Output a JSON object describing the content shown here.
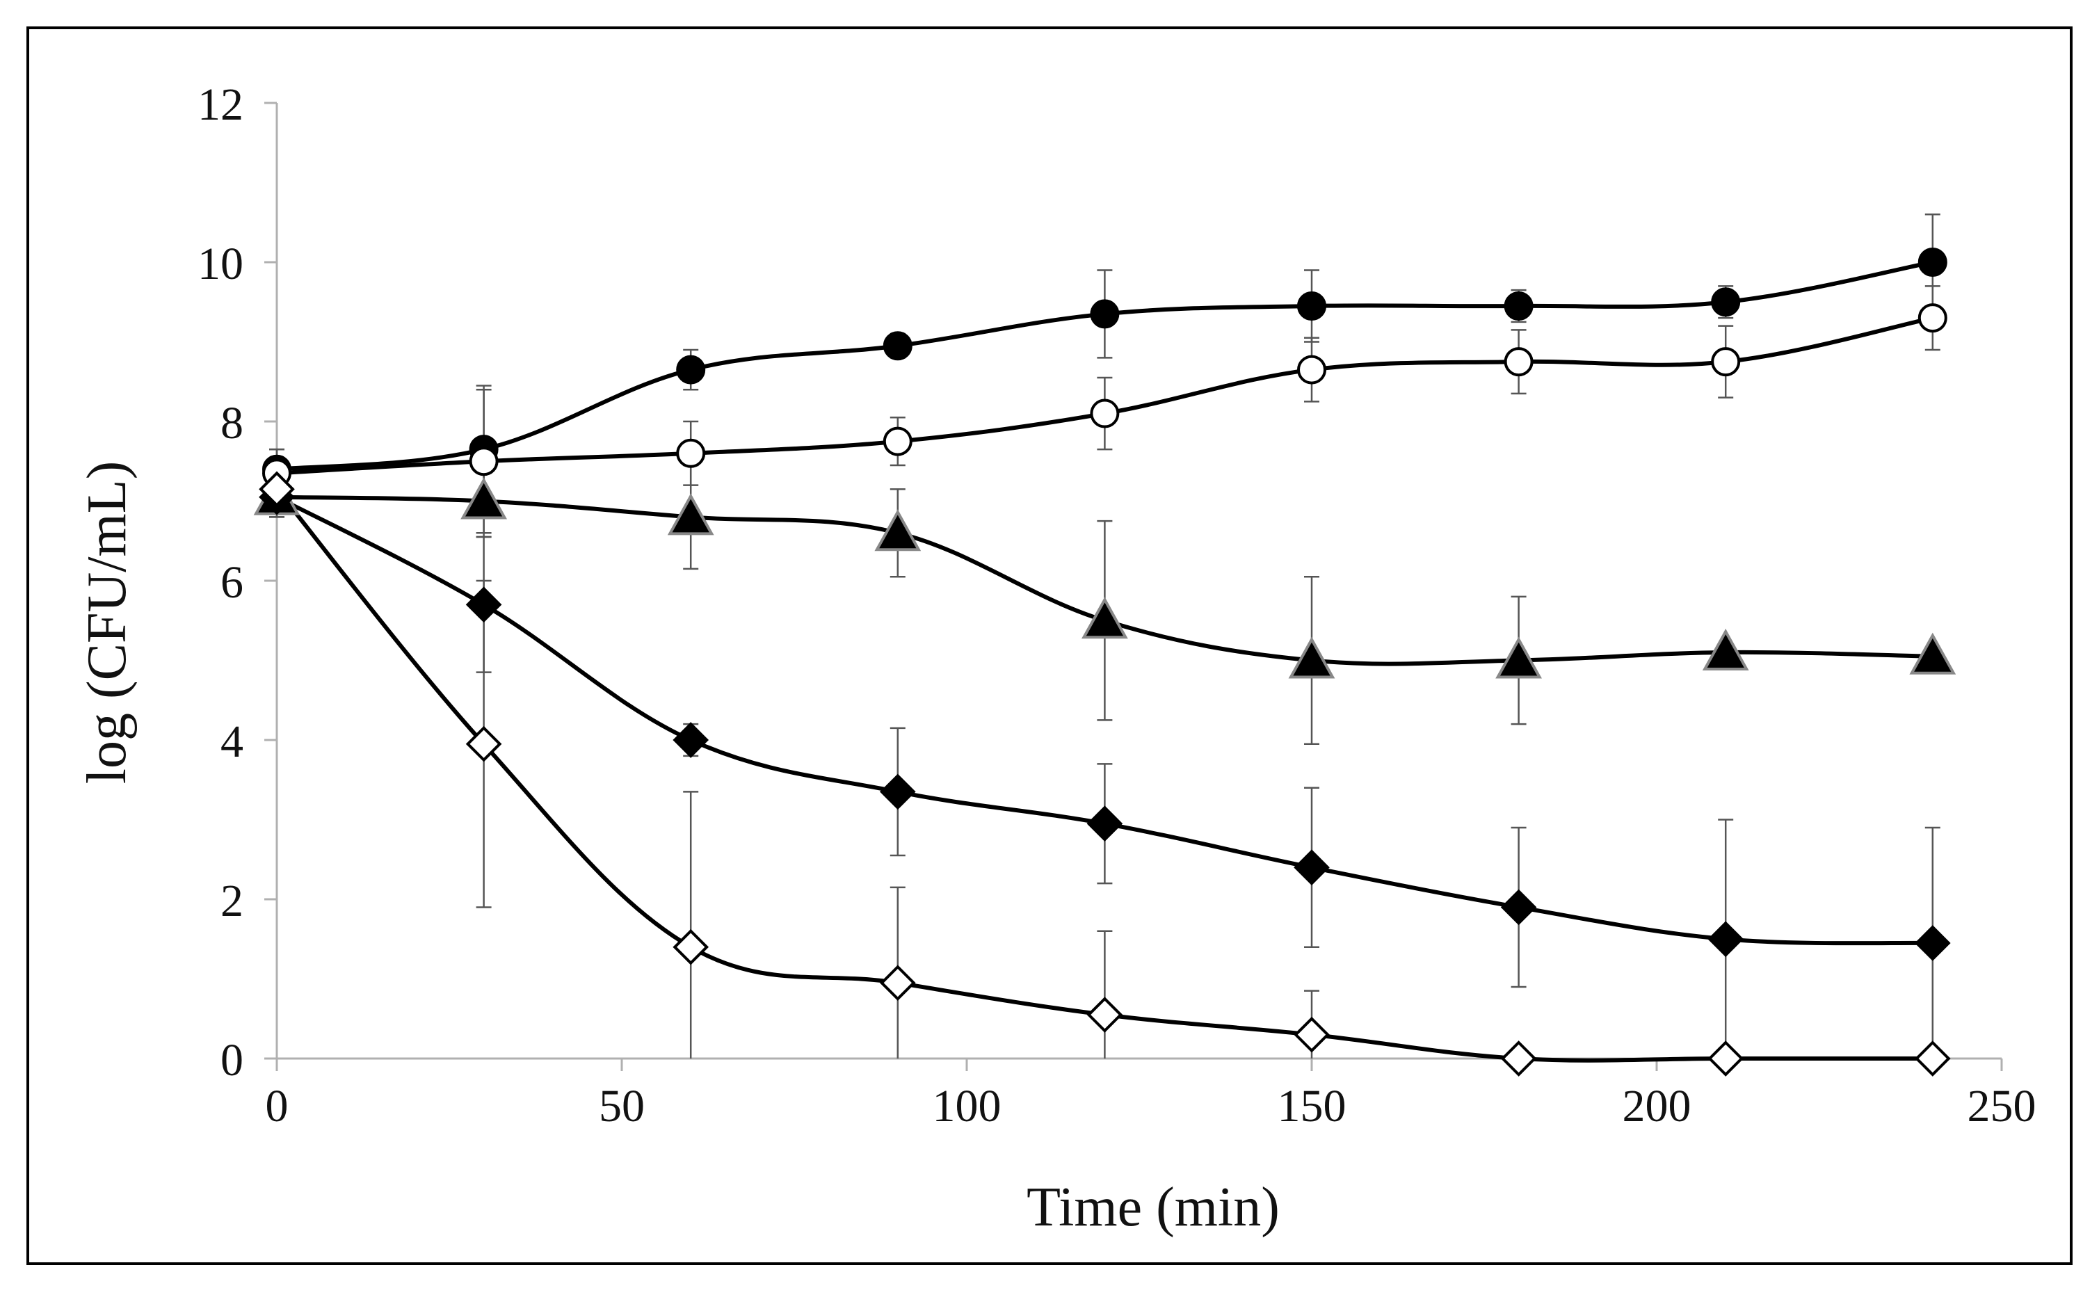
{
  "chart_data": {
    "type": "line",
    "title": "",
    "xlabel": "Time (min)",
    "ylabel": "log (CFU/mL)",
    "xlim": [
      0,
      250
    ],
    "ylim": [
      0,
      12
    ],
    "xticks": [
      0,
      50,
      100,
      150,
      200,
      250
    ],
    "yticks": [
      0,
      2,
      4,
      6,
      8,
      10,
      12
    ],
    "grid": false,
    "legend": "none",
    "x": [
      0,
      30,
      60,
      90,
      120,
      150,
      180,
      210,
      240
    ],
    "series": [
      {
        "name": "filled-circle",
        "marker": "circle",
        "fill": "#000000",
        "stroke": "#000000",
        "values": [
          7.4,
          7.65,
          8.65,
          8.95,
          9.35,
          9.45,
          9.45,
          9.5,
          10.0
        ],
        "errors": [
          0.25,
          0.8,
          0.25,
          0.15,
          0.55,
          0.45,
          0.2,
          0.2,
          0.6
        ]
      },
      {
        "name": "open-circle",
        "marker": "circle",
        "fill": "#ffffff",
        "stroke": "#000000",
        "values": [
          7.35,
          7.5,
          7.6,
          7.75,
          8.1,
          8.65,
          8.75,
          8.75,
          9.3
        ],
        "errors": [
          0.3,
          0.9,
          0.4,
          0.3,
          0.45,
          0.4,
          0.4,
          0.45,
          0.4
        ]
      },
      {
        "name": "filled-triangle",
        "marker": "triangle",
        "fill": "#000000",
        "stroke": "#888888",
        "values": [
          7.05,
          7.0,
          6.8,
          6.6,
          5.5,
          5.0,
          5.0,
          5.1,
          5.05
        ],
        "errors": [
          0.25,
          0.45,
          0.65,
          0.55,
          1.25,
          1.05,
          0.8,
          0.0,
          0.0
        ]
      },
      {
        "name": "filled-diamond",
        "marker": "diamond",
        "fill": "#000000",
        "stroke": "#000000",
        "values": [
          7.05,
          5.7,
          4.0,
          3.35,
          2.95,
          2.4,
          1.9,
          1.5,
          1.45
        ],
        "errors": [
          0.25,
          0.85,
          0.2,
          0.8,
          0.75,
          1.0,
          1.0,
          1.5,
          1.45
        ]
      },
      {
        "name": "open-diamond",
        "marker": "diamond",
        "fill": "#ffffff",
        "stroke": "#000000",
        "values": [
          7.15,
          3.95,
          1.4,
          0.95,
          0.55,
          0.3,
          0.0,
          0.0,
          0.0
        ],
        "errors": [
          0.3,
          2.05,
          1.95,
          1.2,
          1.05,
          0.55,
          0.0,
          0.0,
          0.0
        ]
      }
    ]
  }
}
